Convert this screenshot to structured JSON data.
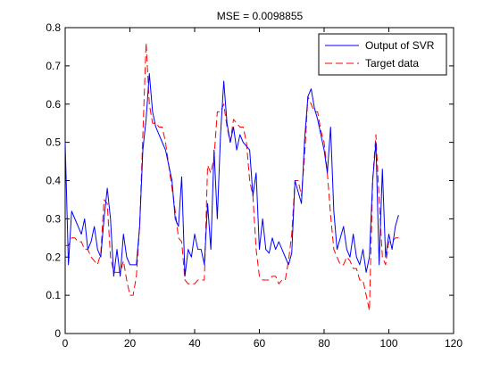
{
  "chart_data": {
    "type": "line",
    "title": "MSE = 0.0098855",
    "xlabel": "",
    "ylabel": "",
    "xlim": [
      0,
      120
    ],
    "ylim": [
      0,
      0.8
    ],
    "xticks": [
      0,
      20,
      40,
      60,
      80,
      100,
      120
    ],
    "yticks": [
      0,
      0.1,
      0.2,
      0.3,
      0.4,
      0.5,
      0.6,
      0.7,
      0.8
    ],
    "grid": false,
    "legend": "top-right",
    "series": [
      {
        "name": "Output of SVR",
        "color": "#0000ff",
        "dash": "solid",
        "x": [
          0,
          1,
          2,
          3,
          4,
          5,
          6,
          7,
          8,
          9,
          10,
          11,
          12,
          13,
          14,
          15,
          16,
          17,
          18,
          19,
          20,
          21,
          22,
          23,
          24,
          25,
          26,
          27,
          28,
          29,
          30,
          31,
          32,
          33,
          34,
          35,
          36,
          37,
          38,
          39,
          40,
          41,
          42,
          43,
          44,
          45,
          46,
          47,
          48,
          49,
          50,
          51,
          52,
          53,
          54,
          55,
          56,
          57,
          58,
          59,
          60,
          61,
          62,
          63,
          64,
          65,
          66,
          67,
          68,
          69,
          70,
          71,
          72,
          73,
          74,
          75,
          76,
          77,
          78,
          79,
          80,
          81,
          82,
          83,
          84,
          85,
          86,
          87,
          88,
          89,
          90,
          91,
          92,
          93,
          94,
          95,
          96,
          97,
          98,
          99,
          100,
          101,
          102,
          103
        ],
        "y": [
          0.5,
          0.18,
          0.32,
          0.3,
          0.28,
          0.26,
          0.3,
          0.22,
          0.24,
          0.28,
          0.22,
          0.2,
          0.3,
          0.38,
          0.3,
          0.15,
          0.22,
          0.15,
          0.26,
          0.2,
          0.18,
          0.18,
          0.18,
          0.28,
          0.48,
          0.56,
          0.68,
          0.58,
          0.54,
          0.52,
          0.5,
          0.48,
          0.44,
          0.4,
          0.3,
          0.28,
          0.41,
          0.15,
          0.22,
          0.2,
          0.26,
          0.22,
          0.22,
          0.18,
          0.34,
          0.22,
          0.48,
          0.3,
          0.52,
          0.66,
          0.55,
          0.5,
          0.54,
          0.48,
          0.52,
          0.5,
          0.49,
          0.48,
          0.36,
          0.42,
          0.22,
          0.3,
          0.22,
          0.21,
          0.25,
          0.22,
          0.24,
          0.22,
          0.2,
          0.18,
          0.21,
          0.4,
          0.37,
          0.34,
          0.51,
          0.62,
          0.64,
          0.59,
          0.56,
          0.52,
          0.48,
          0.42,
          0.54,
          0.32,
          0.22,
          0.25,
          0.28,
          0.22,
          0.2,
          0.26,
          0.2,
          0.18,
          0.22,
          0.16,
          0.2,
          0.4,
          0.5,
          0.18,
          0.43,
          0.2,
          0.26,
          0.22,
          0.28,
          0.31
        ]
      },
      {
        "name": "Target data",
        "color": "#ff0000",
        "dash": "dashed",
        "x": [
          0,
          1,
          2,
          3,
          4,
          5,
          6,
          7,
          8,
          9,
          10,
          11,
          12,
          13,
          14,
          15,
          16,
          17,
          18,
          19,
          20,
          21,
          22,
          23,
          24,
          25,
          26,
          27,
          28,
          29,
          30,
          31,
          32,
          33,
          34,
          35,
          36,
          37,
          38,
          39,
          40,
          41,
          42,
          43,
          44,
          45,
          46,
          47,
          48,
          49,
          50,
          51,
          52,
          53,
          54,
          55,
          56,
          57,
          58,
          59,
          60,
          61,
          62,
          63,
          64,
          65,
          66,
          67,
          68,
          69,
          70,
          71,
          72,
          73,
          74,
          75,
          76,
          77,
          78,
          79,
          80,
          81,
          82,
          83,
          84,
          85,
          86,
          87,
          88,
          89,
          90,
          91,
          92,
          93,
          94,
          95,
          96,
          97,
          98,
          99,
          100,
          101,
          102,
          103
        ],
        "y": [
          0.23,
          0.23,
          0.25,
          0.25,
          0.24,
          0.24,
          0.22,
          0.22,
          0.2,
          0.19,
          0.18,
          0.21,
          0.35,
          0.34,
          0.2,
          0.16,
          0.16,
          0.16,
          0.19,
          0.14,
          0.1,
          0.1,
          0.15,
          0.28,
          0.52,
          0.76,
          0.6,
          0.55,
          0.55,
          0.54,
          0.54,
          0.5,
          0.44,
          0.38,
          0.32,
          0.25,
          0.24,
          0.14,
          0.13,
          0.13,
          0.13,
          0.14,
          0.14,
          0.14,
          0.44,
          0.42,
          0.46,
          0.58,
          0.58,
          0.6,
          0.54,
          0.5,
          0.56,
          0.55,
          0.54,
          0.54,
          0.5,
          0.4,
          0.36,
          0.22,
          0.15,
          0.14,
          0.14,
          0.14,
          0.15,
          0.15,
          0.13,
          0.14,
          0.14,
          0.19,
          0.26,
          0.4,
          0.4,
          0.36,
          0.47,
          0.62,
          0.6,
          0.58,
          0.58,
          0.53,
          0.5,
          0.42,
          0.31,
          0.22,
          0.2,
          0.18,
          0.18,
          0.2,
          0.19,
          0.17,
          0.17,
          0.14,
          0.14,
          0.1,
          0.06,
          0.4,
          0.52,
          0.35,
          0.2,
          0.18,
          0.24,
          0.24,
          0.25,
          0.25
        ]
      }
    ]
  }
}
